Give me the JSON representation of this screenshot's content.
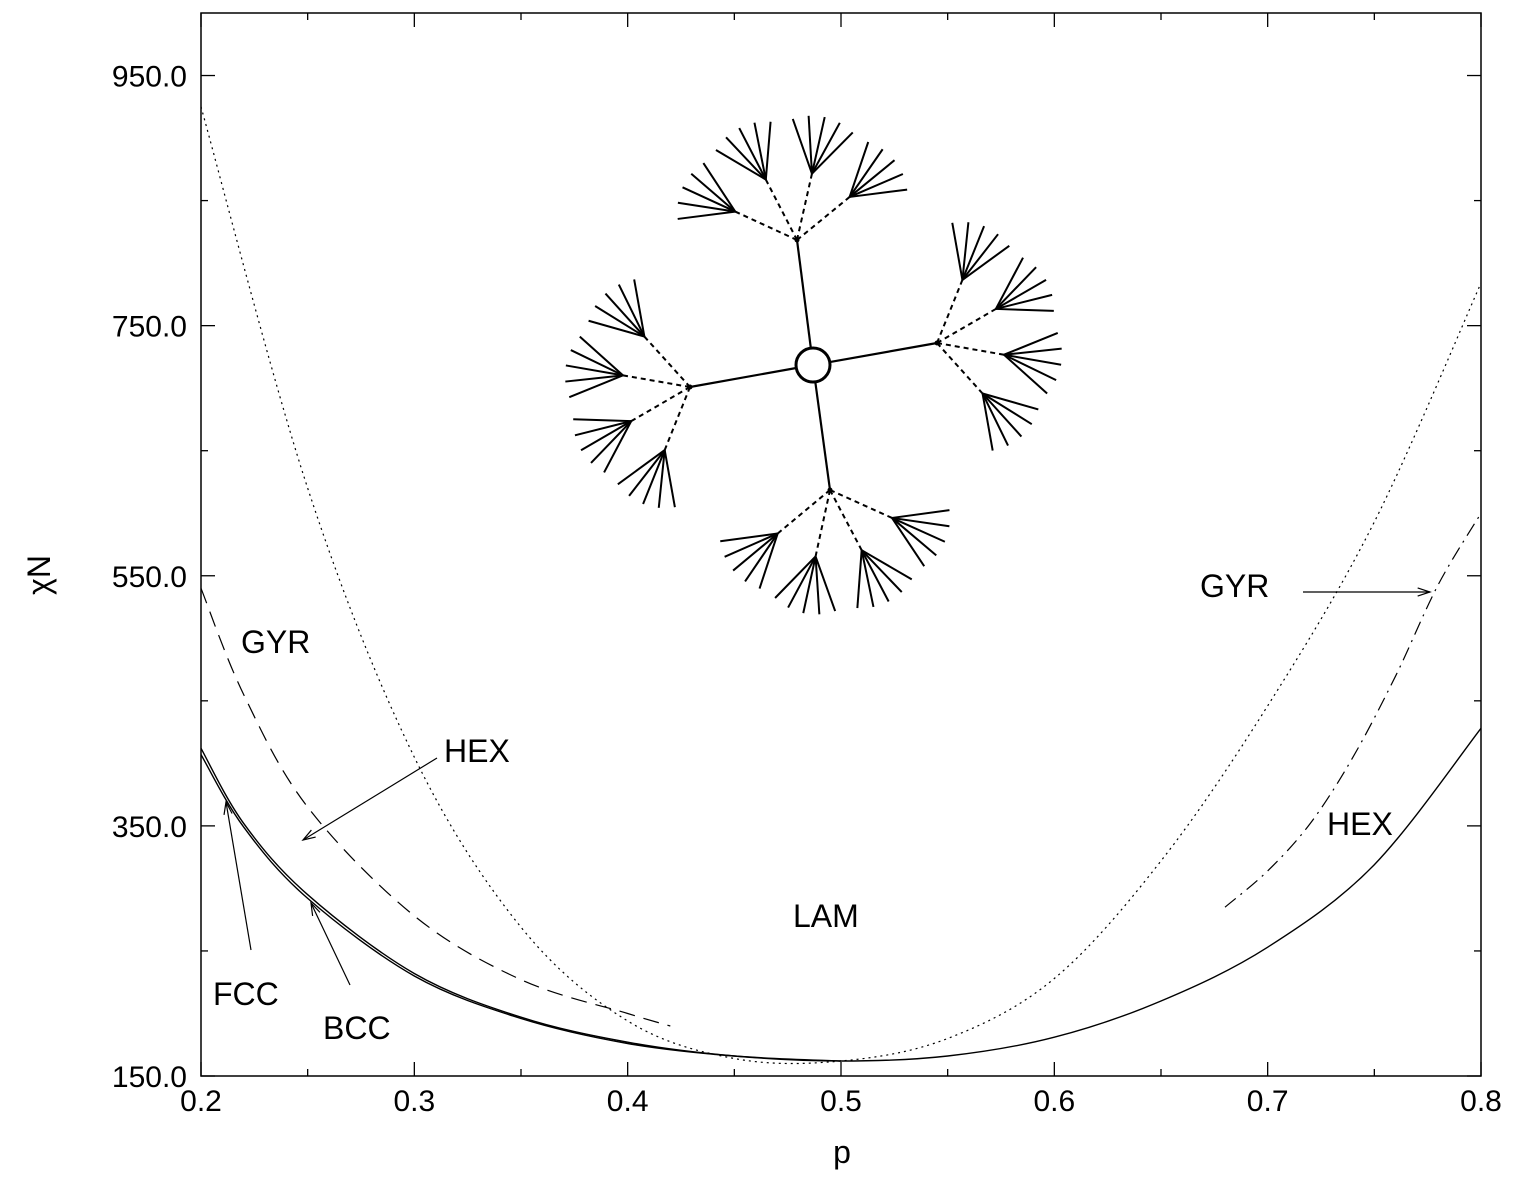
{
  "chart_data": {
    "type": "line",
    "title": "",
    "xlabel": "p",
    "ylabel": "χN",
    "xlim": [
      0.2,
      0.8
    ],
    "ylim": [
      150,
      1000
    ],
    "xticks": [
      "0.2",
      "0.3",
      "0.4",
      "0.5",
      "0.6",
      "0.7",
      "0.8"
    ],
    "yticks": [
      "150.0",
      "350.0",
      "550.0",
      "750.0",
      "950.0"
    ],
    "grid": false,
    "legend": "none",
    "series": [
      {
        "style": "solid",
        "x": [
          0.2,
          0.22,
          0.25,
          0.3,
          0.35,
          0.4,
          0.45,
          0.5,
          0.55,
          0.6,
          0.65,
          0.7,
          0.75,
          0.8
        ],
        "y": [
          412,
          352,
          295,
          232,
          197,
          177,
          166,
          162,
          166,
          181,
          210,
          253,
          319,
          428
        ]
      },
      {
        "style": "solid",
        "x": [
          0.2,
          0.22,
          0.25,
          0.3,
          0.35,
          0.4,
          0.45,
          0.5
        ],
        "y": [
          407,
          349,
          292,
          230,
          196,
          176,
          166,
          162
        ]
      },
      {
        "style": "dashed",
        "x": [
          0.2,
          0.22,
          0.25,
          0.3,
          0.35,
          0.4,
          0.42
        ],
        "y": [
          540,
          455,
          365,
          278,
          227,
          200,
          190
        ]
      },
      {
        "style": "dotted",
        "x": [
          0.2,
          0.25,
          0.3,
          0.35,
          0.4,
          0.45,
          0.5,
          0.55,
          0.6,
          0.65,
          0.7,
          0.75,
          0.8
        ],
        "y": [
          925,
          620,
          405,
          269,
          194,
          164,
          162,
          180,
          228,
          322,
          446,
          593,
          784
        ]
      },
      {
        "style": "dashdot",
        "x": [
          0.68,
          0.7,
          0.72,
          0.74,
          0.76,
          0.78,
          0.8
        ],
        "y": [
          285,
          314,
          352,
          405,
          470,
          543,
          600
        ]
      }
    ],
    "annotations": {
      "lam": "LAM",
      "gyr_left": "GYR",
      "gyr_right": "GYR",
      "hex_left": "HEX",
      "hex_right": "HEX",
      "fcc": "FCC",
      "bcc": "BCC"
    }
  }
}
